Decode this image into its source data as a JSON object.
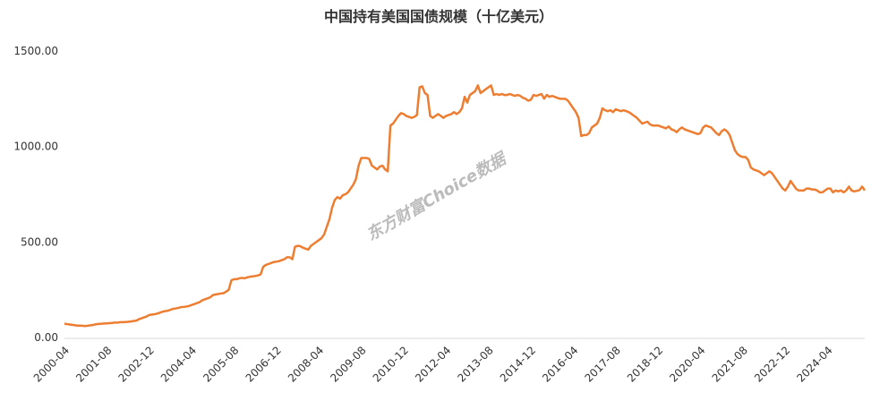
{
  "chart_data": {
    "type": "line",
    "title": "中国持有美国国债规模（十亿美元）",
    "watermark": "东方财富Choice数据",
    "ylim": [
      0,
      1500
    ],
    "yticks": [
      {
        "value": 0,
        "label": "0.00"
      },
      {
        "value": 500,
        "label": "500.00"
      },
      {
        "value": 1000,
        "label": "1000.00"
      },
      {
        "value": 1500,
        "label": "1500.00"
      }
    ],
    "grid": false,
    "categories": [
      "2000-04",
      null,
      null,
      null,
      null,
      null,
      null,
      null,
      null,
      null,
      null,
      null,
      null,
      null,
      null,
      null,
      "2001-08",
      null,
      null,
      null,
      null,
      null,
      null,
      null,
      null,
      null,
      null,
      null,
      null,
      null,
      null,
      null,
      "2002-12",
      null,
      null,
      null,
      null,
      null,
      null,
      null,
      null,
      null,
      null,
      null,
      null,
      null,
      null,
      null,
      "2004-04",
      null,
      null,
      null,
      null,
      null,
      null,
      null,
      null,
      null,
      null,
      null,
      null,
      null,
      null,
      null,
      "2005-08",
      null,
      null,
      null,
      null,
      null,
      null,
      null,
      null,
      null,
      null,
      null,
      null,
      null,
      null,
      null,
      "2006-12",
      null,
      null,
      null,
      null,
      null,
      null,
      null,
      null,
      null,
      null,
      null,
      null,
      null,
      null,
      null,
      "2008-04",
      null,
      null,
      null,
      null,
      null,
      null,
      null,
      null,
      null,
      null,
      null,
      null,
      null,
      null,
      null,
      "2009-08",
      null,
      null,
      null,
      null,
      null,
      null,
      null,
      null,
      null,
      null,
      null,
      null,
      null,
      null,
      null,
      "2010-12",
      null,
      null,
      null,
      null,
      null,
      null,
      null,
      null,
      null,
      null,
      null,
      null,
      null,
      null,
      null,
      "2012-04",
      null,
      null,
      null,
      null,
      null,
      null,
      null,
      null,
      null,
      null,
      null,
      null,
      null,
      null,
      null,
      "2013-08",
      null,
      null,
      null,
      null,
      null,
      null,
      null,
      null,
      null,
      null,
      null,
      null,
      null,
      null,
      null,
      "2014-12",
      null,
      null,
      null,
      null,
      null,
      null,
      null,
      null,
      null,
      null,
      null,
      null,
      null,
      null,
      null,
      "2016-04",
      null,
      null,
      null,
      null,
      null,
      null,
      null,
      null,
      null,
      null,
      null,
      null,
      null,
      null,
      null,
      "2017-08",
      null,
      null,
      null,
      null,
      null,
      null,
      null,
      null,
      null,
      null,
      null,
      null,
      null,
      null,
      null,
      "2018-12",
      null,
      null,
      null,
      null,
      null,
      null,
      null,
      null,
      null,
      null,
      null,
      null,
      null,
      null,
      null,
      "2020-04",
      null,
      null,
      null,
      null,
      null,
      null,
      null,
      null,
      null,
      null,
      null,
      null,
      null,
      null,
      null,
      "2021-08",
      null,
      null,
      null,
      null,
      null,
      null,
      null,
      null,
      null,
      null,
      null,
      null,
      null,
      null,
      null,
      "2022-12",
      null,
      null,
      null,
      null,
      null,
      null,
      null,
      null,
      null,
      null,
      null,
      null,
      null,
      null,
      null,
      "2024-04",
      null,
      null,
      null,
      null,
      null,
      null,
      null,
      null,
      null,
      null,
      null,
      null,
      null,
      null
    ],
    "series": [
      {
        "color": "#ed7d31",
        "values": [
          72,
          70,
          68,
          66,
          64,
          62,
          62,
          61,
          60,
          62,
          64,
          66,
          70,
          71,
          72,
          73,
          74,
          75,
          76,
          78,
          78,
          80,
          80,
          81,
          82,
          84,
          86,
          88,
          95,
          100,
          105,
          110,
          118,
          120,
          122,
          125,
          130,
          135,
          138,
          140,
          145,
          150,
          152,
          155,
          159,
          160,
          162,
          165,
          170,
          175,
          180,
          185,
          195,
          200,
          205,
          210,
          222,
          225,
          228,
          230,
          232,
          240,
          250,
          300,
          305,
          305,
          310,
          312,
          310,
          315,
          318,
          320,
          322,
          325,
          330,
          370,
          380,
          385,
          390,
          395,
          397,
          400,
          405,
          410,
          420,
          420,
          410,
          475,
          480,
          478,
          470,
          465,
          460,
          480,
          490,
          500,
          510,
          520,
          540,
          580,
          620,
          680,
          720,
          735,
          727,
          745,
          750,
          760,
          780,
          800,
          830,
          900,
          940,
          940,
          940,
          935,
          900,
          890,
          880,
          895,
          900,
          880,
          870,
          1110,
          1120,
          1140,
          1160,
          1175,
          1170,
          1160,
          1155,
          1150,
          1155,
          1165,
          1310,
          1315,
          1280,
          1270,
          1160,
          1150,
          1160,
          1170,
          1160,
          1150,
          1160,
          1165,
          1170,
          1180,
          1170,
          1180,
          1200,
          1260,
          1230,
          1270,
          1280,
          1290,
          1320,
          1280,
          1290,
          1300,
          1310,
          1320,
          1270,
          1275,
          1270,
          1275,
          1270,
          1270,
          1275,
          1270,
          1265,
          1270,
          1265,
          1255,
          1250,
          1240,
          1245,
          1270,
          1265,
          1270,
          1275,
          1250,
          1270,
          1260,
          1265,
          1260,
          1255,
          1250,
          1250,
          1250,
          1240,
          1220,
          1200,
          1180,
          1150,
          1055,
          1060,
          1060,
          1070,
          1100,
          1110,
          1120,
          1150,
          1200,
          1190,
          1185,
          1190,
          1180,
          1195,
          1190,
          1185,
          1190,
          1185,
          1180,
          1170,
          1160,
          1150,
          1135,
          1120,
          1125,
          1130,
          1115,
          1110,
          1110,
          1110,
          1105,
          1100,
          1095,
          1105,
          1090,
          1085,
          1075,
          1090,
          1100,
          1090,
          1085,
          1080,
          1075,
          1070,
          1065,
          1070,
          1100,
          1110,
          1105,
          1100,
          1085,
          1070,
          1060,
          1080,
          1090,
          1080,
          1060,
          1020,
          980,
          960,
          950,
          945,
          945,
          930,
          890,
          880,
          875,
          870,
          860,
          850,
          860,
          870,
          860,
          840,
          820,
          800,
          780,
          770,
          790,
          820,
          800,
          780,
          770,
          770,
          770,
          780,
          780,
          775,
          775,
          770,
          760,
          760,
          770,
          780,
          780,
          760,
          770,
          765,
          770,
          760,
          770,
          790,
          770,
          765,
          768,
          772,
          790,
          770
        ]
      }
    ]
  }
}
